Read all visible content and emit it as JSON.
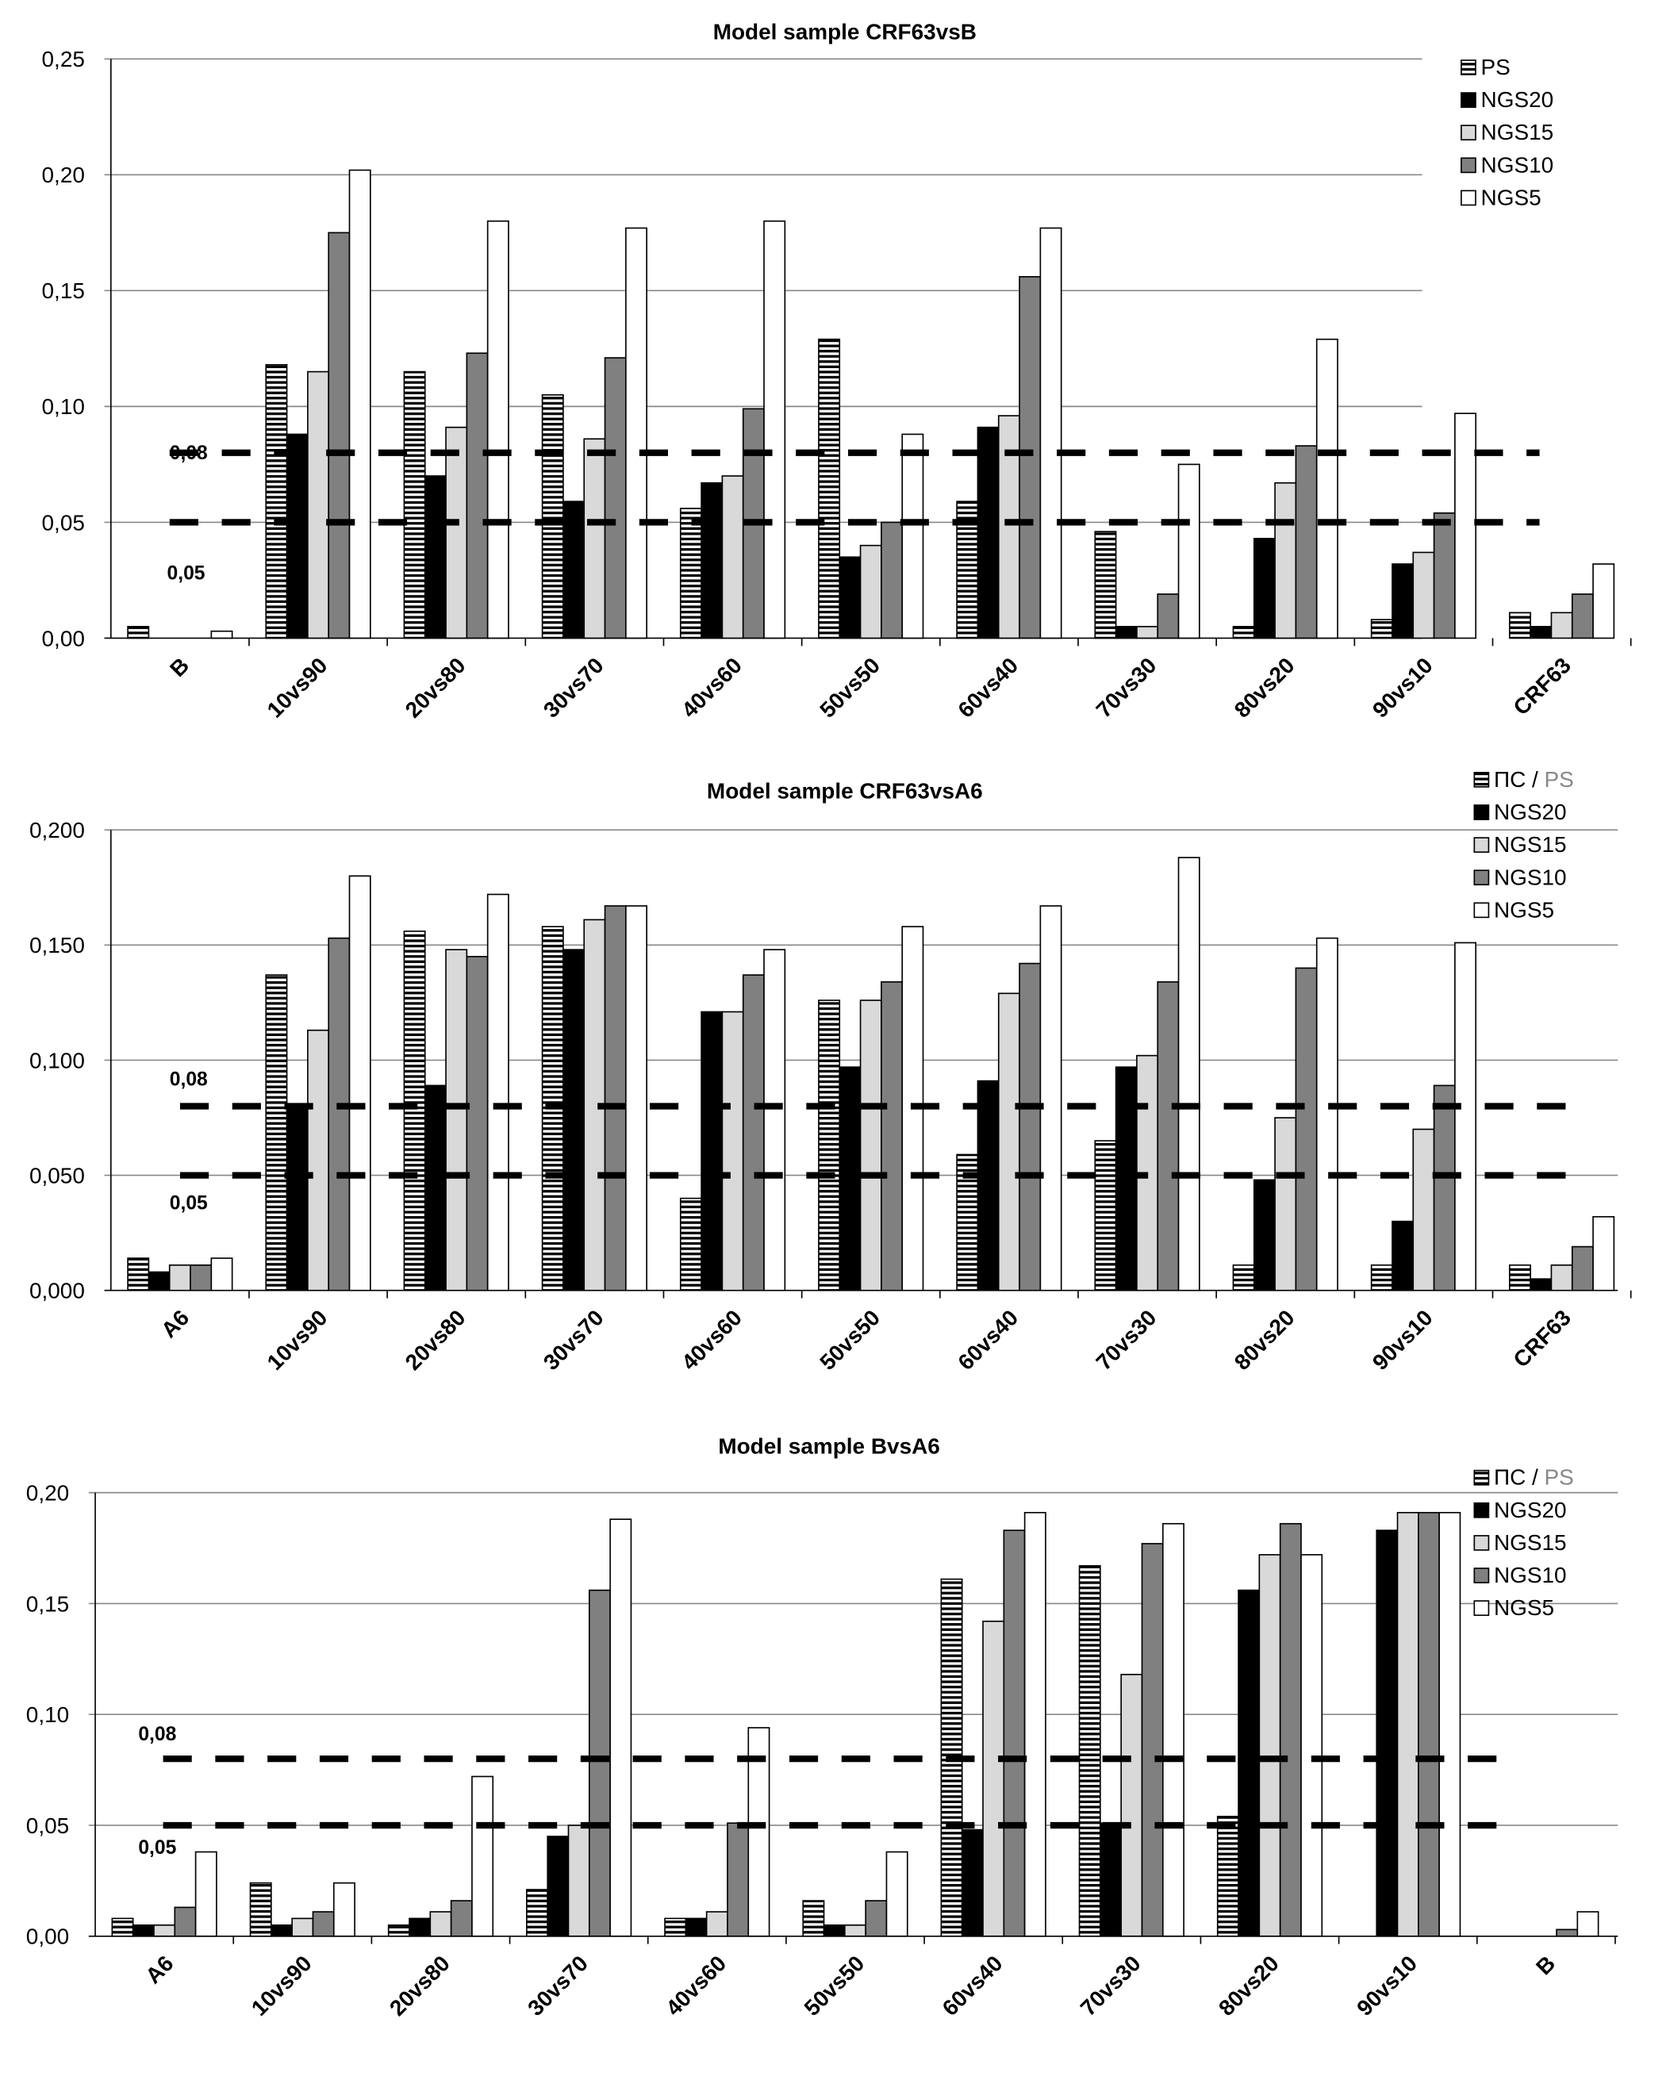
{
  "colors": {
    "PS": "hatch-horizontal",
    "NGS20": "#000000",
    "NGS15": "#d9d9d9",
    "NGS10": "#808080",
    "NGS5": "#ffffff",
    "ps_gray_text": "#888888"
  },
  "chart_data": [
    {
      "type": "bar",
      "title": "Model sample CRF63vsB",
      "ylim": [
        0,
        0.25
      ],
      "yticks": [
        "0,00",
        "0,05",
        "0,10",
        "0,15",
        "0,20",
        "0,25"
      ],
      "ytick_values": [
        0,
        0.05,
        0.1,
        0.15,
        0.2,
        0.25
      ],
      "grid": true,
      "legend": "top-right",
      "thresholds": [
        {
          "value": 0.08,
          "label": "0,08"
        },
        {
          "value": 0.05,
          "label": "0,05"
        }
      ],
      "categories": [
        "B",
        "10vs90",
        "20vs80",
        "30vs70",
        "40vs60",
        "50vs50",
        "60vs40",
        "70vs30",
        "80vs20",
        "90vs10",
        "CRF63"
      ],
      "series": [
        {
          "name": "PS",
          "legend": [
            "PS"
          ],
          "values": [
            0.005,
            0.118,
            0.115,
            0.105,
            0.056,
            0.129,
            0.059,
            0.046,
            0.005,
            0.008,
            0.011
          ]
        },
        {
          "name": "NGS20",
          "legend": [
            "NGS20"
          ],
          "values": [
            0,
            0.088,
            0.07,
            0.059,
            0.067,
            0.035,
            0.091,
            0.005,
            0.043,
            0.032,
            0.005
          ]
        },
        {
          "name": "NGS15",
          "legend": [
            "NGS15"
          ],
          "values": [
            0,
            0.115,
            0.091,
            0.086,
            0.07,
            0.04,
            0.096,
            0.005,
            0.067,
            0.037,
            0.011
          ]
        },
        {
          "name": "NGS10",
          "legend": [
            "NGS10"
          ],
          "values": [
            0,
            0.175,
            0.123,
            0.121,
            0.099,
            0.05,
            0.156,
            0.019,
            0.083,
            0.054,
            0.019
          ]
        },
        {
          "name": "NGS5",
          "legend": [
            "NGS5"
          ],
          "values": [
            0.003,
            0.202,
            0.18,
            0.177,
            0.18,
            0.088,
            0.177,
            0.075,
            0.129,
            0.097,
            0.032
          ]
        }
      ]
    },
    {
      "type": "bar",
      "title": "Model sample CRF63vsA6",
      "ylim": [
        0,
        0.2
      ],
      "yticks": [
        "0,000",
        "0,050",
        "0,100",
        "0,150",
        "0,200"
      ],
      "ytick_values": [
        0,
        0.05,
        0.1,
        0.15,
        0.2
      ],
      "grid": true,
      "legend": "top-right",
      "thresholds": [
        {
          "value": 0.08,
          "label": "0,08"
        },
        {
          "value": 0.05,
          "label": "0,05"
        }
      ],
      "categories": [
        "A6",
        "10vs90",
        "20vs80",
        "30vs70",
        "40vs60",
        "50vs50",
        "60vs40",
        "70vs30",
        "80vs20",
        "90vs10",
        "CRF63"
      ],
      "series": [
        {
          "name": "ПС / PS",
          "legend": [
            "ПС / ",
            "PS"
          ],
          "values": [
            0.014,
            0.137,
            0.156,
            0.158,
            0.04,
            0.126,
            0.059,
            0.065,
            0.011,
            0.011,
            0.011
          ]
        },
        {
          "name": "NGS20",
          "legend": [
            "NGS20"
          ],
          "values": [
            0.008,
            0.081,
            0.089,
            0.148,
            0.121,
            0.097,
            0.091,
            0.097,
            0.048,
            0.03,
            0.005
          ]
        },
        {
          "name": "NGS15",
          "legend": [
            "NGS15"
          ],
          "values": [
            0.011,
            0.113,
            0.148,
            0.161,
            0.121,
            0.126,
            0.129,
            0.102,
            0.075,
            0.07,
            0.011
          ]
        },
        {
          "name": "NGS10",
          "legend": [
            "NGS10"
          ],
          "values": [
            0.011,
            0.153,
            0.145,
            0.167,
            0.137,
            0.134,
            0.142,
            0.134,
            0.14,
            0.089,
            0.019
          ]
        },
        {
          "name": "NGS5",
          "legend": [
            "NGS5"
          ],
          "values": [
            0.014,
            0.18,
            0.172,
            0.167,
            0.148,
            0.158,
            0.167,
            0.188,
            0.153,
            0.151,
            0.032
          ]
        }
      ]
    },
    {
      "type": "bar",
      "title": "Model sample BvsA6",
      "ylim": [
        0,
        0.2
      ],
      "yticks": [
        "0,00",
        "0,05",
        "0,10",
        "0,15",
        "0,20"
      ],
      "ytick_values": [
        0,
        0.05,
        0.1,
        0.15,
        0.2
      ],
      "grid": true,
      "legend": "top-right",
      "thresholds": [
        {
          "value": 0.08,
          "label": "0,08"
        },
        {
          "value": 0.05,
          "label": "0,05"
        }
      ],
      "categories": [
        "A6",
        "10vs90",
        "20vs80",
        "30vs70",
        "40vs60",
        "50vs50",
        "60vs40",
        "70vs30",
        "80vs20",
        "90vs10",
        "B"
      ],
      "series": [
        {
          "name": "ПС / PS",
          "legend": [
            "ПС / ",
            "PS"
          ],
          "values": [
            0.008,
            0.024,
            0.005,
            0.021,
            0.008,
            0.016,
            0.161,
            0.167,
            0.054,
            0,
            0
          ]
        },
        {
          "name": "NGS20",
          "legend": [
            "NGS20"
          ],
          "values": [
            0.005,
            0.005,
            0.008,
            0.045,
            0.008,
            0.005,
            0.048,
            0.051,
            0.156,
            0.183,
            0
          ]
        },
        {
          "name": "NGS15",
          "legend": [
            "NGS15"
          ],
          "values": [
            0.005,
            0.008,
            0.011,
            0.05,
            0.011,
            0.005,
            0.142,
            0.118,
            0.172,
            0.191,
            0
          ]
        },
        {
          "name": "NGS10",
          "legend": [
            "NGS10"
          ],
          "values": [
            0.013,
            0.011,
            0.016,
            0.156,
            0.051,
            0.016,
            0.183,
            0.177,
            0.186,
            0.191,
            0.003
          ]
        },
        {
          "name": "NGS5",
          "legend": [
            "NGS5"
          ],
          "values": [
            0.038,
            0.024,
            0.072,
            0.188,
            0.094,
            0.038,
            0.191,
            0.186,
            0.172,
            0.191,
            0.011
          ]
        }
      ]
    }
  ]
}
